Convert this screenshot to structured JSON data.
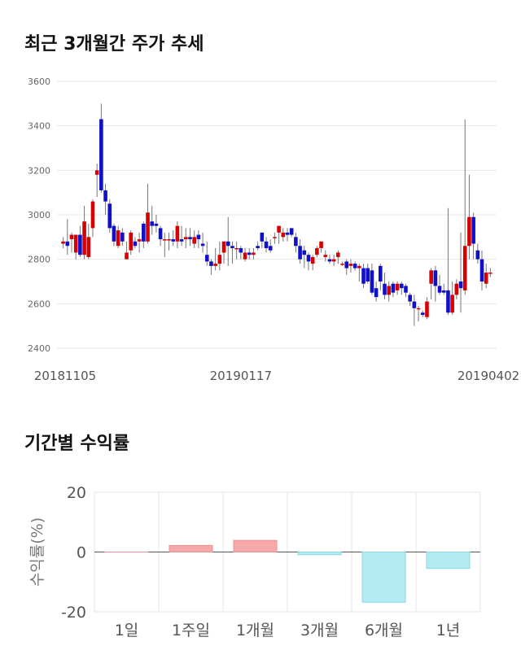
{
  "charts": {
    "price_title": "최근 3개월간 주가 추세",
    "return_title": "기간별 수익률"
  },
  "chart_data": [
    {
      "type": "candlestick",
      "title": "최근 3개월간 주가 추세",
      "ylim": [
        2400,
        3600
      ],
      "yticks": [
        "3600",
        "3400",
        "3200",
        "3000",
        "2800",
        "2600",
        "2400"
      ],
      "xticks": [
        "20181105",
        "20190117",
        "20190402"
      ],
      "grid": true,
      "colors": {
        "up": "#d60000",
        "down": "#1010c8",
        "wick": "#777777"
      },
      "candles": [
        [
          2870,
          2880,
          2850,
          2900
        ],
        [
          2880,
          2860,
          2820,
          2980
        ],
        [
          2890,
          2910,
          2830,
          2920
        ],
        [
          2830,
          2910,
          2800,
          2910
        ],
        [
          2910,
          2820,
          2810,
          2950
        ],
        [
          2820,
          2970,
          2800,
          3040
        ],
        [
          2810,
          2900,
          2800,
          2960
        ],
        [
          2940,
          3060,
          2900,
          3070
        ],
        [
          3180,
          3200,
          3080,
          3230
        ],
        [
          3430,
          3110,
          3100,
          3500
        ],
        [
          3110,
          3060,
          3000,
          3140
        ],
        [
          3050,
          2940,
          2920,
          3070
        ],
        [
          2950,
          2880,
          2860,
          2960
        ],
        [
          2860,
          2930,
          2850,
          2950
        ],
        [
          2920,
          2880,
          2860,
          2940
        ],
        [
          2800,
          2830,
          2800,
          2880
        ],
        [
          2840,
          2920,
          2820,
          2930
        ],
        [
          2880,
          2860,
          2850,
          2900
        ],
        [
          2880,
          2890,
          2830,
          2920
        ],
        [
          2960,
          2880,
          2850,
          2970
        ],
        [
          2880,
          3010,
          2870,
          3140
        ],
        [
          2970,
          2950,
          2910,
          3040
        ],
        [
          2960,
          2950,
          2920,
          3000
        ],
        [
          2940,
          2890,
          2860,
          2950
        ],
        [
          2890,
          2890,
          2810,
          2920
        ],
        [
          2890,
          2890,
          2840,
          2920
        ],
        [
          2890,
          2880,
          2860,
          2930
        ],
        [
          2880,
          2950,
          2850,
          2970
        ],
        [
          2890,
          2880,
          2860,
          2950
        ],
        [
          2890,
          2900,
          2850,
          2940
        ],
        [
          2900,
          2890,
          2860,
          2940
        ],
        [
          2870,
          2900,
          2850,
          2930
        ],
        [
          2910,
          2890,
          2850,
          2930
        ],
        [
          2870,
          2860,
          2830,
          2920
        ],
        [
          2820,
          2790,
          2770,
          2880
        ],
        [
          2790,
          2770,
          2730,
          2800
        ],
        [
          2770,
          2780,
          2750,
          2850
        ],
        [
          2780,
          2820,
          2750,
          2880
        ],
        [
          2830,
          2880,
          2780,
          2880
        ],
        [
          2880,
          2860,
          2770,
          2990
        ],
        [
          2860,
          2850,
          2780,
          2880
        ],
        [
          2850,
          2850,
          2800,
          2880
        ],
        [
          2850,
          2830,
          2800,
          2860
        ],
        [
          2800,
          2830,
          2790,
          2850
        ],
        [
          2830,
          2820,
          2800,
          2850
        ],
        [
          2820,
          2830,
          2800,
          2850
        ],
        [
          2860,
          2850,
          2840,
          2880
        ],
        [
          2920,
          2880,
          2850,
          2920
        ],
        [
          2880,
          2850,
          2830,
          2900
        ],
        [
          2860,
          2840,
          2830,
          2890
        ],
        [
          2900,
          2900,
          2870,
          2920
        ],
        [
          2920,
          2950,
          2870,
          2950
        ],
        [
          2900,
          2920,
          2880,
          2940
        ],
        [
          2920,
          2910,
          2880,
          2940
        ],
        [
          2940,
          2910,
          2900,
          2940
        ],
        [
          2900,
          2860,
          2830,
          2920
        ],
        [
          2860,
          2800,
          2780,
          2890
        ],
        [
          2840,
          2820,
          2760,
          2860
        ],
        [
          2820,
          2790,
          2750,
          2830
        ],
        [
          2780,
          2810,
          2750,
          2820
        ],
        [
          2820,
          2850,
          2810,
          2860
        ],
        [
          2850,
          2880,
          2830,
          2880
        ],
        [
          2810,
          2820,
          2790,
          2840
        ],
        [
          2800,
          2790,
          2780,
          2820
        ],
        [
          2790,
          2800,
          2770,
          2820
        ],
        [
          2810,
          2830,
          2780,
          2840
        ],
        [
          2780,
          2780,
          2770,
          2790
        ],
        [
          2790,
          2760,
          2730,
          2800
        ],
        [
          2770,
          2780,
          2740,
          2800
        ],
        [
          2780,
          2760,
          2750,
          2790
        ],
        [
          2760,
          2770,
          2700,
          2780
        ],
        [
          2760,
          2690,
          2670,
          2780
        ],
        [
          2760,
          2700,
          2690,
          2780
        ],
        [
          2750,
          2650,
          2640,
          2780
        ],
        [
          2670,
          2630,
          2610,
          2700
        ],
        [
          2770,
          2700,
          2660,
          2780
        ],
        [
          2690,
          2640,
          2620,
          2740
        ],
        [
          2640,
          2680,
          2610,
          2700
        ],
        [
          2690,
          2650,
          2630,
          2700
        ],
        [
          2660,
          2690,
          2640,
          2700
        ],
        [
          2690,
          2670,
          2640,
          2700
        ],
        [
          2680,
          2650,
          2630,
          2690
        ],
        [
          2640,
          2610,
          2590,
          2650
        ],
        [
          2610,
          2580,
          2500,
          2640
        ],
        [
          2580,
          2580,
          2520,
          2590
        ],
        [
          2560,
          2550,
          2540,
          2570
        ],
        [
          2540,
          2610,
          2530,
          2630
        ],
        [
          2690,
          2750,
          2620,
          2760
        ],
        [
          2750,
          2680,
          2610,
          2770
        ],
        [
          2680,
          2650,
          2640,
          2730
        ],
        [
          2660,
          2650,
          2640,
          2690
        ],
        [
          2660,
          2560,
          2550,
          3030
        ],
        [
          2560,
          2640,
          2550,
          2700
        ],
        [
          2640,
          2690,
          2620,
          2710
        ],
        [
          2700,
          2670,
          2560,
          2920
        ],
        [
          2660,
          2860,
          2640,
          3430
        ],
        [
          2860,
          2990,
          2800,
          3180
        ],
        [
          2990,
          2870,
          2800,
          3010
        ],
        [
          2840,
          2800,
          2780,
          2870
        ],
        [
          2800,
          2700,
          2660,
          2840
        ],
        [
          2690,
          2740,
          2670,
          2780
        ],
        [
          2740,
          2740,
          2720,
          2760
        ]
      ]
    },
    {
      "type": "bar",
      "title": "기간별 수익률",
      "ylabel": "수익률(%)",
      "ylim": [
        -20,
        20
      ],
      "yticks": [
        "20",
        "0",
        "-20"
      ],
      "categories": [
        "1일",
        "1주일",
        "1개월",
        "3개월",
        "6개월",
        "1년"
      ],
      "values": [
        0,
        2.2,
        3.9,
        -0.9,
        -16.8,
        -5.5
      ],
      "grid": true,
      "colors": {
        "positive": "#f7a8a8",
        "negative": "#b2ebf2",
        "positive_edge": "#ef8f8f",
        "negative_edge": "#8fd5e3"
      }
    }
  ]
}
